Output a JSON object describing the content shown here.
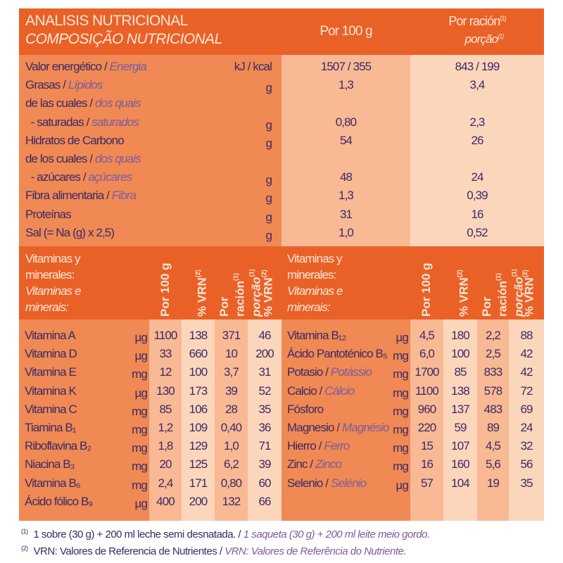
{
  "header": {
    "title_es": "ANALISIS NUTRICIONAL",
    "title_pt": "COMPOSIÇÃO NUTRICIONAL",
    "per100": "Por 100 g",
    "per_serving_es": "Por ración",
    "per_serving_pt": "porção",
    "footnote_ref_1": "(1)"
  },
  "nutrition": [
    {
      "es": "Valor energético / ",
      "pt": "Energia",
      "unit": "kJ / kcal",
      "per100": "1507 / 355",
      "serving": "843 / 199"
    },
    {
      "es": "Grasas / ",
      "pt": "Lípidos",
      "unit": "g",
      "per100": "1,3",
      "serving": "3,4"
    },
    {
      "es": "de las cuales / ",
      "pt": "dos quais",
      "unit": "",
      "per100": "",
      "serving": ""
    },
    {
      "es": "  - saturadas / ",
      "pt": "saturados",
      "unit": "g",
      "per100": "0,80",
      "serving": "2,3"
    },
    {
      "es": "Hidratos de Carbono",
      "pt": "",
      "unit": "g",
      "per100": "54",
      "serving": "26"
    },
    {
      "es": "de los cuales / ",
      "pt": "dos quais",
      "unit": "",
      "per100": "",
      "serving": ""
    },
    {
      "es": "  - azúcares / ",
      "pt": "açúcares",
      "unit": "g",
      "per100": "48",
      "serving": "24"
    },
    {
      "es": "Fibra alimentaria / ",
      "pt": "Fibra",
      "unit": "g",
      "per100": "1,3",
      "serving": "0,39"
    },
    {
      "es": "Proteínas",
      "pt": "",
      "unit": "g",
      "per100": "31",
      "serving": "16"
    },
    {
      "es": "Sal (= Na (g) x 2,5)",
      "pt": "",
      "unit": "g",
      "per100": "1,0",
      "serving": "0,52"
    }
  ],
  "vitamins_header": {
    "label_es_1": "Vitaminas y",
    "label_es_2": "minerales:",
    "label_pt_1": "Vitaminas e",
    "label_pt_2": "minerais:",
    "per100": "Por 100 g",
    "vrn": "% VRN",
    "vrn_ref": "(2)",
    "serving_es": "Por ración",
    "serving_pt": "porção",
    "serving_ref": "(1)"
  },
  "vitamins_left": [
    {
      "es": "Vitamina A",
      "pt": "",
      "unit": "µg",
      "per100": "1100",
      "vrn100": "138",
      "serving": "371",
      "vrnServing": "46"
    },
    {
      "es": "Vitamina D",
      "pt": "",
      "unit": "µg",
      "per100": "33",
      "vrn100": "660",
      "serving": "10",
      "vrnServing": "200"
    },
    {
      "es": "Vitamina E",
      "pt": "",
      "unit": "mg",
      "per100": "12",
      "vrn100": "100",
      "serving": "3,7",
      "vrnServing": "31"
    },
    {
      "es": "Vitamina K",
      "pt": "",
      "unit": "µg",
      "per100": "130",
      "vrn100": "173",
      "serving": "39",
      "vrnServing": "52"
    },
    {
      "es": "Vitamina C",
      "pt": "",
      "unit": "mg",
      "per100": "85",
      "vrn100": "106",
      "serving": "28",
      "vrnServing": "35"
    },
    {
      "es": "Tiamina B₁",
      "pt": "",
      "unit": "mg",
      "per100": "1,2",
      "vrn100": "109",
      "serving": "0,40",
      "vrnServing": "36"
    },
    {
      "es": "Riboflavina B₂",
      "pt": "",
      "unit": "mg",
      "per100": "1,8",
      "vrn100": "129",
      "serving": "1,0",
      "vrnServing": "71"
    },
    {
      "es": "Niacina B₃",
      "pt": "",
      "unit": "mg",
      "per100": "20",
      "vrn100": "125",
      "serving": "6,2",
      "vrnServing": "39"
    },
    {
      "es": "Vitamina B₆",
      "pt": "",
      "unit": "mg",
      "per100": "2,4",
      "vrn100": "171",
      "serving": "0,80",
      "vrnServing": "60"
    },
    {
      "es": "Ácido fólico B₉",
      "pt": "",
      "unit": "µg",
      "per100": "400",
      "vrn100": "200",
      "serving": "132",
      "vrnServing": "66"
    }
  ],
  "vitamins_right": [
    {
      "es": "Vitamina B₁₂",
      "pt": "",
      "unit": "µg",
      "per100": "4,5",
      "vrn100": "180",
      "serving": "2,2",
      "vrnServing": "88"
    },
    {
      "es": "Ácido Pantoténico B₅",
      "pt": "",
      "unit": "mg",
      "per100": "6,0",
      "vrn100": "100",
      "serving": "2,5",
      "vrnServing": "42"
    },
    {
      "es": "Potasio / ",
      "pt": "Potássio",
      "unit": "mg",
      "per100": "1700",
      "vrn100": "85",
      "serving": "833",
      "vrnServing": "42"
    },
    {
      "es": "Calcio / ",
      "pt": "Cálcio",
      "unit": "mg",
      "per100": "1100",
      "vrn100": "138",
      "serving": "578",
      "vrnServing": "72"
    },
    {
      "es": "Fósforo",
      "pt": "",
      "unit": "mg",
      "per100": "960",
      "vrn100": "137",
      "serving": "483",
      "vrnServing": "69"
    },
    {
      "es": "Magnesio / ",
      "pt": "Magnésio",
      "unit": "mg",
      "per100": "220",
      "vrn100": "59",
      "serving": "89",
      "vrnServing": "24"
    },
    {
      "es": "Hierro / ",
      "pt": "Ferro",
      "unit": "mg",
      "per100": "15",
      "vrn100": "107",
      "serving": "4,5",
      "vrnServing": "32"
    },
    {
      "es": "Zinc / ",
      "pt": "Zinco",
      "unit": "mg",
      "per100": "16",
      "vrn100": "160",
      "serving": "5,6",
      "vrnServing": "56"
    },
    {
      "es": "Selenio / ",
      "pt": "Selénio",
      "unit": "µg",
      "per100": "57",
      "vrn100": "104",
      "serving": "19",
      "vrnServing": "35"
    }
  ],
  "footnotes": [
    {
      "ref": "(1)",
      "es": "1 sobre (30 g) + 200 ml leche semi desnatada. / ",
      "pt": "1 saqueta (30 g) + 200 ml leite meio gordo."
    },
    {
      "ref": "(2)",
      "es": "VRN: Valores de Referencia de Nutrientes / ",
      "pt": "VRN: Valores de Referência do Nutriente."
    }
  ],
  "colors": {
    "header": "#ea6127",
    "label_bg": "#f08953",
    "col_a": "#f8b994",
    "col_b": "#fcd6bb",
    "text": "#3b2a66",
    "text_pt": "#7a5c9e"
  }
}
